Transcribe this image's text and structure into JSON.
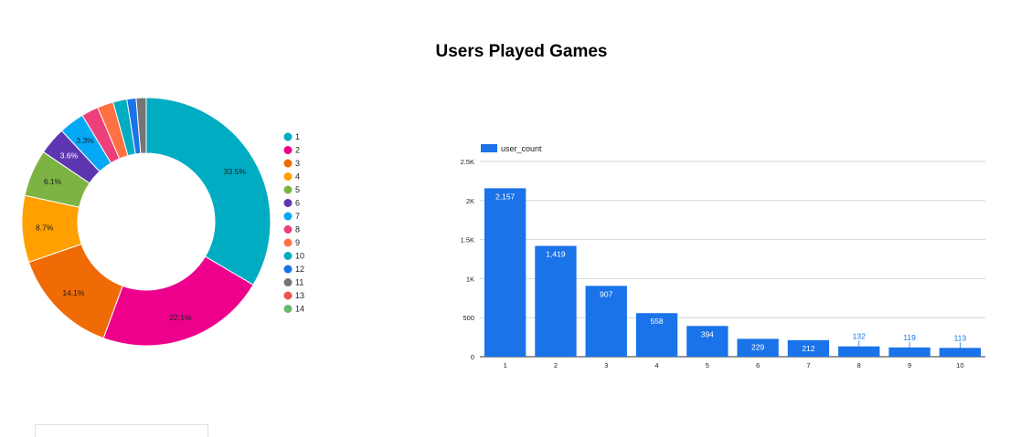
{
  "page_title": "Users Played Games",
  "chart_data": [
    {
      "type": "pie",
      "style": "donut",
      "title": "",
      "legend_position": "right",
      "slices": [
        {
          "label": "1",
          "value": 33.5,
          "display": "33.5%",
          "color": "#00acc1"
        },
        {
          "label": "2",
          "value": 22.1,
          "display": "22.1%",
          "color": "#ec008c"
        },
        {
          "label": "3",
          "value": 14.1,
          "display": "14.1%",
          "color": "#f06b05"
        },
        {
          "label": "4",
          "value": 8.7,
          "display": "8.7%",
          "color": "#ffa000"
        },
        {
          "label": "5",
          "value": 6.1,
          "display": "6.1%",
          "color": "#7cb342"
        },
        {
          "label": "6",
          "value": 3.6,
          "display": "3.6%",
          "color": "#5e35b1"
        },
        {
          "label": "7",
          "value": 3.3,
          "display": "3.3%",
          "color": "#03a9f4"
        },
        {
          "label": "8",
          "value": 2.2,
          "display": "",
          "color": "#ec407a"
        },
        {
          "label": "9",
          "value": 2.1,
          "display": "",
          "color": "#ff7043"
        },
        {
          "label": "10",
          "value": 1.8,
          "display": "",
          "color": "#00acc1"
        },
        {
          "label": "12",
          "value": 1.2,
          "display": "",
          "color": "#1a73e8"
        },
        {
          "label": "11",
          "value": 1.3,
          "display": "",
          "color": "#757575"
        },
        {
          "label": "13",
          "value": 0.0,
          "display": "",
          "color": "#ef5350"
        },
        {
          "label": "14",
          "value": 0.0,
          "display": "",
          "color": "#66bb6a"
        }
      ]
    },
    {
      "type": "bar",
      "title": "",
      "xlabel": "",
      "ylabel": "",
      "legend_position": "top-left",
      "categories": [
        "1",
        "2",
        "3",
        "4",
        "5",
        "6",
        "7",
        "8",
        "9",
        "10"
      ],
      "series": [
        {
          "name": "user_count",
          "color": "#1a73e8",
          "values": [
            2157,
            1419,
            907,
            558,
            394,
            229,
            212,
            132,
            119,
            113
          ],
          "labels": [
            "2,157",
            "1,419",
            "907",
            "558",
            "394",
            "229",
            "212",
            "132",
            "119",
            "113"
          ]
        }
      ],
      "ylim": [
        0,
        2500
      ],
      "yticks": [
        0,
        500,
        1000,
        1500,
        2000,
        2500
      ],
      "ytick_labels": [
        "0",
        "500",
        "1K",
        "1.5K",
        "2K",
        "2.5K"
      ],
      "grid": true
    }
  ]
}
